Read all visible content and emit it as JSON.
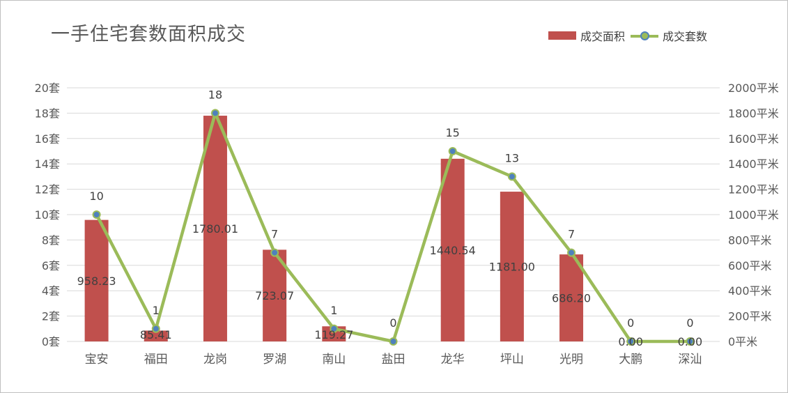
{
  "chart_data": {
    "type": "bar",
    "title": "一手住宅套数面积成交",
    "categories": [
      "宝安",
      "福田",
      "龙岗",
      "罗湖",
      "南山",
      "盐田",
      "龙华",
      "坪山",
      "光明",
      "大鹏",
      "深汕"
    ],
    "series": [
      {
        "name": "成交面积",
        "type": "bar",
        "axis": "right",
        "color": "#c0504d",
        "values": [
          958.23,
          85.41,
          1780.01,
          723.07,
          119.27,
          0,
          1440.54,
          1181.0,
          686.2,
          0,
          0
        ],
        "labels": [
          "958.23",
          "85.41",
          "1780.01",
          "723.07",
          "119.27",
          "",
          "1440.54",
          "1181.00",
          "686.20",
          "0.00",
          "0.00"
        ]
      },
      {
        "name": "成交套数",
        "type": "line",
        "axis": "left",
        "color": "#9bbb59",
        "marker_color": "#4f81bd",
        "values": [
          10,
          1,
          18,
          7,
          1,
          0,
          15,
          13,
          7,
          0,
          0
        ],
        "labels": [
          "10",
          "1",
          "18",
          "7",
          "1",
          "0",
          "15",
          "13",
          "7",
          "0",
          "0"
        ]
      }
    ],
    "y_left": {
      "ylim": [
        0,
        20
      ],
      "ticks": [
        "0套",
        "2套",
        "4套",
        "6套",
        "8套",
        "10套",
        "12套",
        "14套",
        "16套",
        "18套",
        "20套"
      ]
    },
    "y_right": {
      "ylim": [
        0,
        2000
      ],
      "ticks": [
        "0平米",
        "200平米",
        "400平米",
        "600平米",
        "800平米",
        "1000平米",
        "1200平米",
        "1400平米",
        "1600平米",
        "1800平米",
        "2000平米"
      ]
    },
    "grid": true,
    "legend_position": "top-right"
  }
}
